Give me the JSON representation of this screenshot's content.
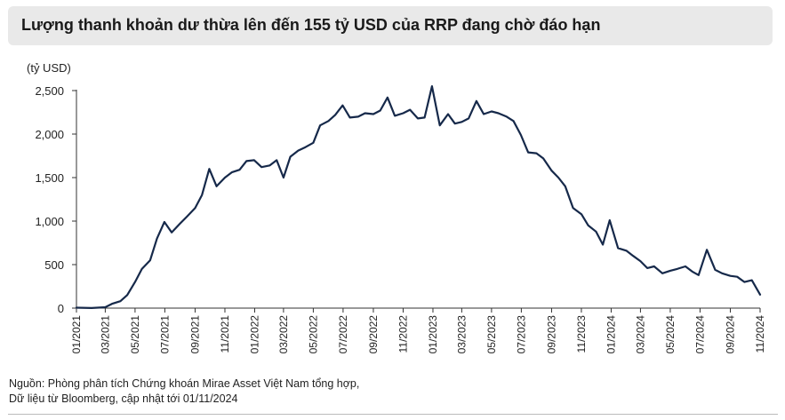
{
  "title": "Lượng thanh khoản dư thừa lên đến 155 tỷ USD của RRP đang chờ đáo hạn",
  "source": {
    "line1": "Nguồn: Phòng phân tích Chứng khoán Mirae Asset Việt Nam tổng hợp,",
    "line2": "Dữ liệu từ Bloomberg, cập nhật tới 01/11/2024"
  },
  "colors": {
    "line": "#16294a",
    "title_bg": "#e9e9e9"
  },
  "chart_data": {
    "type": "line",
    "title": "Lượng thanh khoản dư thừa lên đến 155 tỷ USD của RRP đang chờ đáo hạn",
    "ylabel": "(tỷ USD)",
    "xlabel": "",
    "ylim": [
      0,
      2500
    ],
    "yticks": [
      0,
      500,
      1000,
      1500,
      2000,
      2500
    ],
    "ytick_labels": [
      "0",
      "500",
      "1,000",
      "1,500",
      "2,000",
      "2,500"
    ],
    "xlim": [
      "2021-01",
      "2024-11"
    ],
    "xtick_labels": [
      "01/2021",
      "03/2021",
      "05/2021",
      "07/2021",
      "09/2021",
      "11/2021",
      "01/2022",
      "03/2022",
      "05/2022",
      "07/2022",
      "09/2022",
      "11/2022",
      "01/2023",
      "03/2023",
      "05/2023",
      "07/2023",
      "09/2023",
      "11/2023",
      "01/2024",
      "03/2024",
      "05/2024",
      "07/2024",
      "09/2024",
      "11/2024"
    ],
    "grid": false,
    "legend": "none",
    "series": [
      {
        "x": [
          "2021-01-01",
          "2021-02-01",
          "2021-03-01",
          "2021-03-15",
          "2021-04-01",
          "2021-04-15",
          "2021-05-01",
          "2021-05-15",
          "2021-06-01",
          "2021-06-15",
          "2021-06-30",
          "2021-07-15",
          "2021-08-01",
          "2021-08-15",
          "2021-09-01",
          "2021-09-15",
          "2021-09-30",
          "2021-10-15",
          "2021-11-01",
          "2021-11-15",
          "2021-12-01",
          "2021-12-15",
          "2021-12-31",
          "2022-01-15",
          "2022-02-01",
          "2022-02-15",
          "2022-03-01",
          "2022-03-15",
          "2022-03-31",
          "2022-04-15",
          "2022-05-01",
          "2022-05-15",
          "2022-06-01",
          "2022-06-15",
          "2022-06-30",
          "2022-07-15",
          "2022-08-01",
          "2022-08-15",
          "2022-09-01",
          "2022-09-15",
          "2022-09-30",
          "2022-10-15",
          "2022-11-01",
          "2022-11-15",
          "2022-12-01",
          "2022-12-15",
          "2022-12-30",
          "2023-01-15",
          "2023-02-01",
          "2023-02-15",
          "2023-03-01",
          "2023-03-15",
          "2023-03-31",
          "2023-04-15",
          "2023-05-01",
          "2023-05-15",
          "2023-06-01",
          "2023-06-15",
          "2023-06-30",
          "2023-07-15",
          "2023-08-01",
          "2023-08-15",
          "2023-09-01",
          "2023-09-15",
          "2023-09-29",
          "2023-10-15",
          "2023-11-01",
          "2023-11-15",
          "2023-12-01",
          "2023-12-15",
          "2023-12-29",
          "2024-01-15",
          "2024-02-01",
          "2024-02-15",
          "2024-03-01",
          "2024-03-15",
          "2024-03-29",
          "2024-04-15",
          "2024-05-01",
          "2024-05-15",
          "2024-06-01",
          "2024-06-15",
          "2024-06-28",
          "2024-07-15",
          "2024-08-01",
          "2024-08-15",
          "2024-09-01",
          "2024-09-15",
          "2024-09-30",
          "2024-10-15",
          "2024-11-01"
        ],
        "values": [
          5,
          1,
          10,
          50,
          80,
          150,
          300,
          450,
          550,
          800,
          990,
          870,
          970,
          1050,
          1150,
          1300,
          1600,
          1400,
          1500,
          1560,
          1590,
          1690,
          1700,
          1620,
          1640,
          1700,
          1500,
          1740,
          1810,
          1850,
          1900,
          2100,
          2150,
          2220,
          2330,
          2190,
          2200,
          2240,
          2230,
          2270,
          2420,
          2210,
          2240,
          2280,
          2180,
          2190,
          2550,
          2100,
          2230,
          2120,
          2140,
          2180,
          2380,
          2230,
          2260,
          2240,
          2200,
          2150,
          1990,
          1790,
          1780,
          1720,
          1580,
          1500,
          1400,
          1150,
          1080,
          950,
          880,
          730,
          1010,
          690,
          660,
          600,
          540,
          460,
          480,
          400,
          430,
          450,
          480,
          420,
          380,
          670,
          440,
          400,
          370,
          360,
          300,
          320,
          155
        ]
      }
    ]
  }
}
